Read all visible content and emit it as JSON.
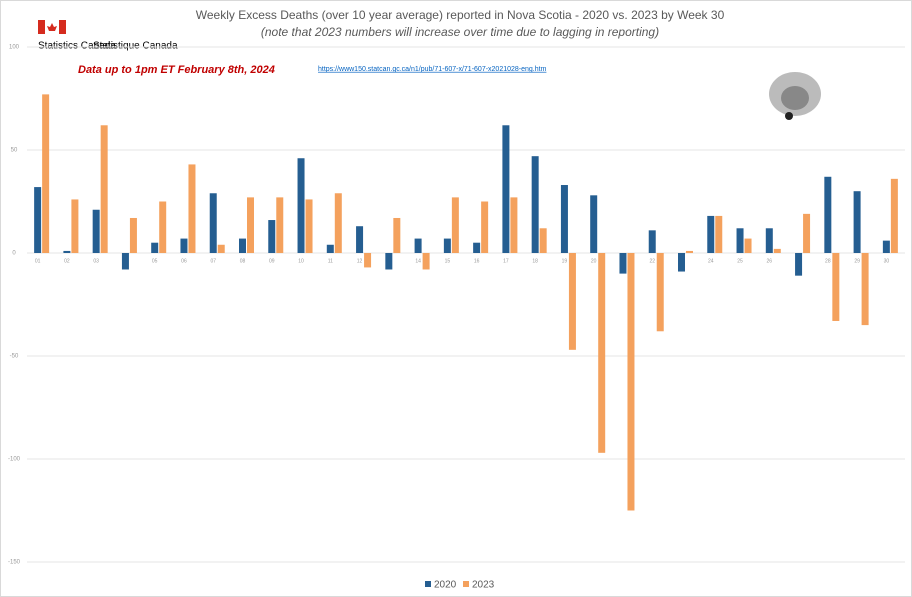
{
  "chart_data": {
    "type": "bar",
    "title": "Weekly Excess Deaths (over 10 year average) reported in Nova Scotia - 2020 vs. 2023 by Week 30",
    "subtitle": "(note that 2023 numbers will increase over time due to lagging in reporting)",
    "annotations": [
      "Statistics Canada",
      "Statistique Canada",
      "Data up to 1pm ET February 8th, 2024",
      "https://www150.statcan.gc.ca/n1/pub/71-607-x/71-607-x2021028-eng.htm"
    ],
    "categories": [
      "01",
      "02",
      "03",
      "04",
      "05",
      "06",
      "07",
      "08",
      "09",
      "10",
      "11",
      "12",
      "13",
      "14",
      "15",
      "16",
      "17",
      "18",
      "19",
      "20",
      "21",
      "22",
      "23",
      "24",
      "25",
      "26",
      "27",
      "28",
      "29",
      "30"
    ],
    "series": [
      {
        "name": "2020",
        "color": "#255e91",
        "values": [
          32,
          1,
          21,
          -8,
          5,
          7,
          29,
          7,
          16,
          46,
          4,
          13,
          -8,
          7,
          7,
          5,
          62,
          47,
          33,
          28,
          -10,
          11,
          -9,
          18,
          12,
          12,
          -11,
          37,
          30,
          6
        ]
      },
      {
        "name": "2023",
        "color": "#f4a15d",
        "values": [
          77,
          26,
          62,
          17,
          25,
          43,
          4,
          27,
          27,
          26,
          29,
          -7,
          17,
          -8,
          27,
          25,
          27,
          12,
          -47,
          -97,
          -125,
          -38,
          1,
          18,
          7,
          2,
          19,
          -33,
          -35,
          36
        ]
      }
    ],
    "ylim": [
      -150,
      100
    ],
    "yticks": [
      -150,
      -100,
      -50,
      0,
      50,
      100
    ],
    "grid": true,
    "legend": "bottom"
  }
}
